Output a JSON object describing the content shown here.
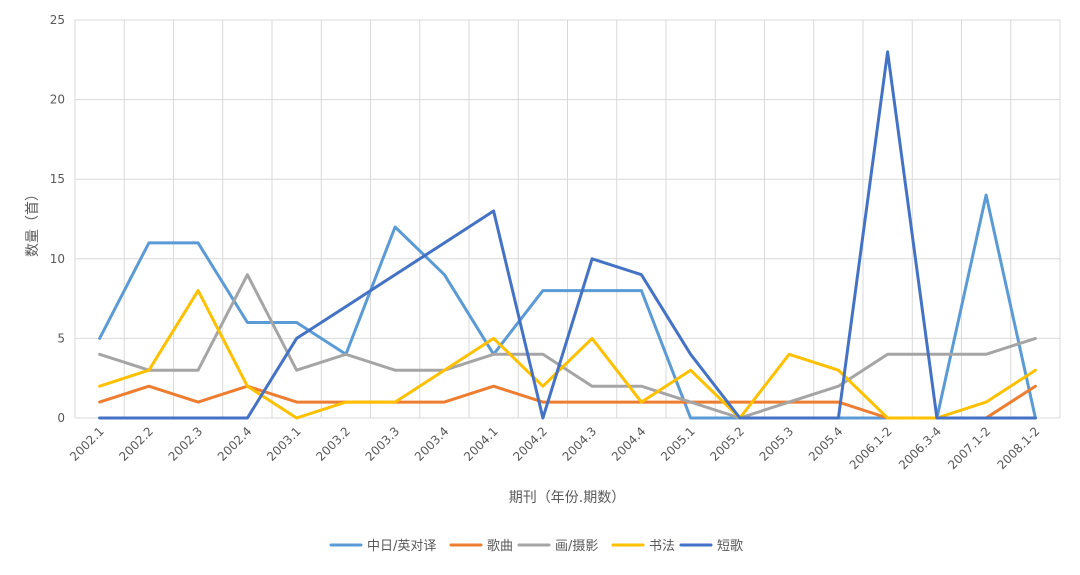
{
  "chart_data": {
    "type": "line",
    "title": "",
    "xlabel": "期刊（年份.期数）",
    "ylabel": "数量（首）",
    "ylim": [
      0,
      25
    ],
    "yticks": [
      0,
      5,
      10,
      15,
      20,
      25
    ],
    "grid": true,
    "legend_position": "bottom",
    "categories": [
      "2002.1",
      "2002.2",
      "2002.3",
      "2002.4",
      "2003.1",
      "2003.2",
      "2003.3",
      "2003.4",
      "2004.1",
      "2004.2",
      "2004.3",
      "2004.4",
      "2005.1",
      "2005.2",
      "2005.3",
      "2005.4",
      "2006.1-2",
      "2006.3-4",
      "2007.1-2",
      "2008.1-2"
    ],
    "series": [
      {
        "name": "中日/英对译",
        "color": "#5B9BD5",
        "values": [
          5,
          11,
          11,
          6,
          6,
          4,
          12,
          9,
          4,
          8,
          8,
          8,
          0,
          0,
          0,
          0,
          0,
          0,
          14,
          0
        ]
      },
      {
        "name": "歌曲",
        "color": "#ED7D31",
        "values": [
          1,
          2,
          1,
          2,
          1,
          1,
          1,
          1,
          2,
          1,
          1,
          1,
          1,
          1,
          1,
          1,
          0,
          0,
          0,
          2
        ]
      },
      {
        "name": "画/摄影",
        "color": "#A5A5A5",
        "values": [
          4,
          3,
          3,
          9,
          3,
          4,
          3,
          3,
          4,
          4,
          2,
          2,
          1,
          0,
          1,
          2,
          4,
          4,
          4,
          5
        ]
      },
      {
        "name": "书法",
        "color": "#FFC000",
        "values": [
          2,
          3,
          8,
          2,
          0,
          1,
          1,
          3,
          5,
          2,
          5,
          1,
          3,
          0,
          4,
          3,
          0,
          0,
          1,
          3
        ]
      },
      {
        "name": "短歌",
        "color": "#4472C4",
        "values": [
          0,
          0,
          0,
          0,
          5,
          7,
          9,
          11,
          13,
          0,
          10,
          9,
          4,
          0,
          0,
          0,
          23,
          0,
          0,
          0
        ]
      }
    ]
  }
}
